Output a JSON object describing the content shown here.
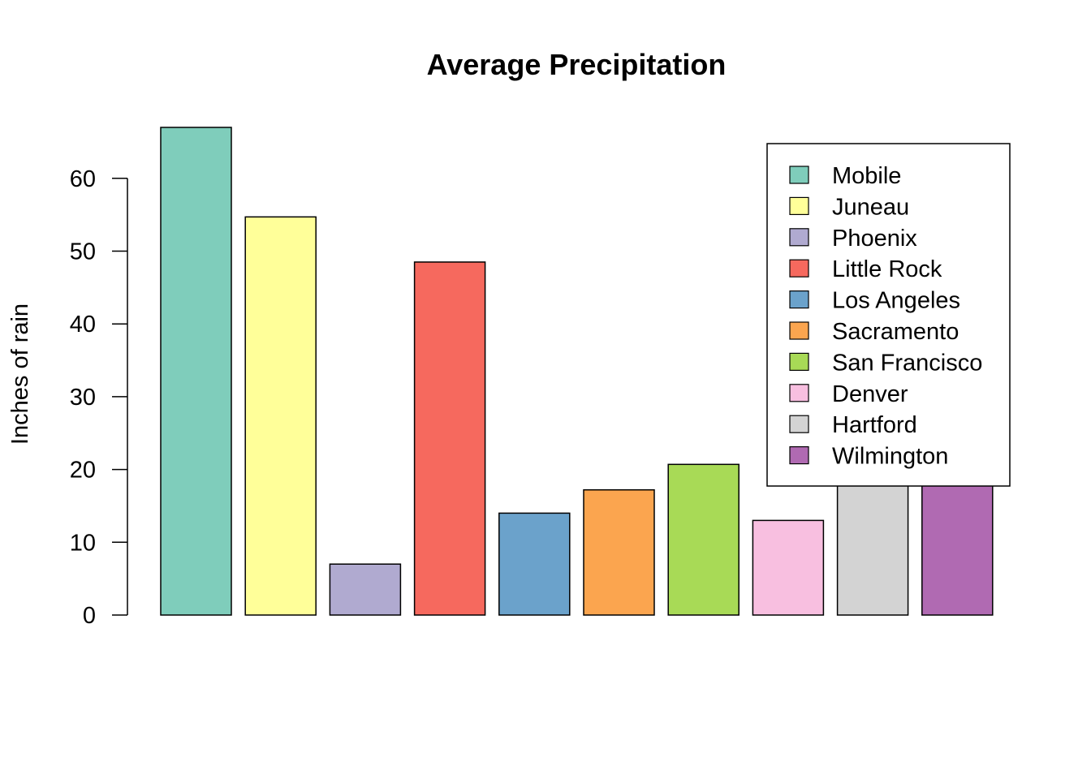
{
  "chart_data": {
    "type": "bar",
    "title": "Average Precipitation",
    "xlabel": "",
    "ylabel": "Inches of rain",
    "ylim": [
      0,
      67
    ],
    "yticks": [
      0,
      10,
      20,
      30,
      40,
      50,
      60
    ],
    "categories": [
      "Mobile",
      "Juneau",
      "Phoenix",
      "Little Rock",
      "Los Angeles",
      "Sacramento",
      "San Francisco",
      "Denver",
      "Hartford",
      "Wilmington"
    ],
    "values": [
      67,
      54.7,
      7,
      48.5,
      14,
      17.2,
      20.7,
      13,
      43.4,
      40.2
    ],
    "colors": [
      "#7fcdbb",
      "#ffff99",
      "#b0aad0",
      "#f6695e",
      "#6ba2cb",
      "#fba54f",
      "#a8da56",
      "#f8bfe0",
      "#d3d3d3",
      "#b06ab2"
    ],
    "grid": false,
    "legend_position": "top-right"
  }
}
